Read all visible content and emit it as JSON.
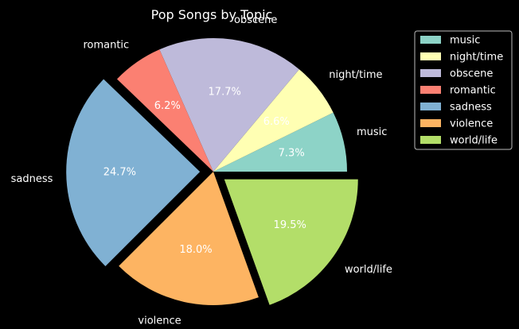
{
  "chart_data": {
    "type": "pie",
    "title": "Pop Songs by Topic",
    "categories": [
      "music",
      "night/time",
      "obscene",
      "romantic",
      "sadness",
      "violence",
      "world/life"
    ],
    "values": [
      7.3,
      6.6,
      17.7,
      6.2,
      24.7,
      18.0,
      19.5
    ],
    "percent_labels": [
      "7.3%",
      "6.6%",
      "17.7%",
      "6.2%",
      "24.7%",
      "18.0%",
      "19.5%"
    ],
    "exploded": [
      "sadness",
      "world/life"
    ],
    "colors": [
      "#8dd3c7",
      "#ffffb3",
      "#bebada",
      "#fb8072",
      "#80b1d3",
      "#fdb462",
      "#b3de69"
    ],
    "start_angle_deg": 0,
    "direction": "counterclockwise",
    "legend": {
      "placement": "upper-right",
      "entries": [
        "music",
        "night/time",
        "obscene",
        "romantic",
        "sadness",
        "violence",
        "world/life"
      ]
    },
    "background": "#000000"
  }
}
